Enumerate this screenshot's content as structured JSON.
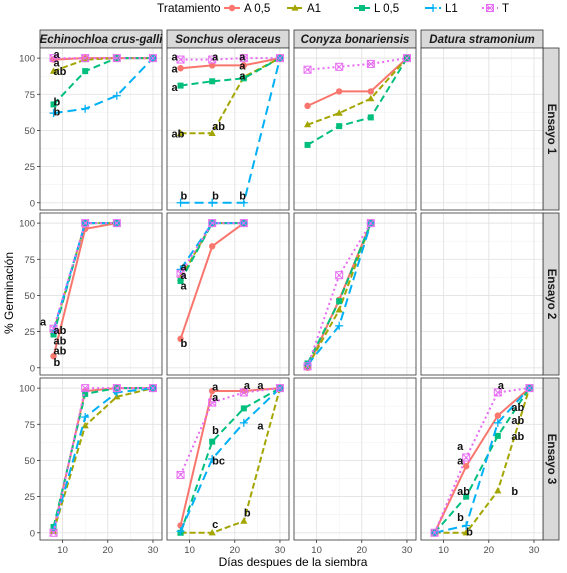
{
  "colors": {
    "A 0,5": "#f8766d",
    "A1": "#a3a500",
    "L 0,5": "#00bf7d",
    "L1": "#00b0f6",
    "T": "#e76bf3"
  },
  "legend": {
    "title": "Tratamiento",
    "items": [
      "A 0,5",
      "A1",
      "L 0,5",
      "L1",
      "T"
    ]
  },
  "chart_data": {
    "type": "line",
    "xlabel": "Días despues de la siembra",
    "ylabel": "% Germinación",
    "xlim": [
      5,
      32
    ],
    "ylim": [
      -5,
      107
    ],
    "xticks": [
      10,
      20,
      30
    ],
    "yticks": [
      0,
      25,
      50,
      75,
      100
    ],
    "columns": [
      "Echinochloa crus-galli",
      "Sonchus oleraceus",
      "Conyza bonariensis",
      "Datura stramonium"
    ],
    "rows": [
      "Ensayo 1",
      "Ensayo 2",
      "Ensayo 3"
    ],
    "grid": true,
    "legend_position": "top",
    "panels": [
      {
        "row": 0,
        "col": 0,
        "series": [
          {
            "name": "A 0,5",
            "x": [
              8,
              15,
              22,
              30
            ],
            "y": [
              99,
              100,
              100,
              100
            ]
          },
          {
            "name": "A1",
            "x": [
              8,
              15,
              22,
              30
            ],
            "y": [
              91,
              99,
              100,
              100
            ]
          },
          {
            "name": "L 0,5",
            "x": [
              8,
              15,
              22,
              30
            ],
            "y": [
              68,
              91,
              100,
              100
            ]
          },
          {
            "name": "L1",
            "x": [
              8,
              15,
              22,
              30
            ],
            "y": [
              62,
              65,
              74,
              100
            ]
          },
          {
            "name": "T",
            "x": [
              8,
              15,
              22,
              30
            ],
            "y": [
              100,
              100,
              100,
              100
            ]
          }
        ],
        "labels": [
          {
            "x": 8,
            "y": 103,
            "t": "a"
          },
          {
            "x": 8,
            "y": 97,
            "t": "a"
          },
          {
            "x": 8,
            "y": 91,
            "t": "ab"
          },
          {
            "x": 8,
            "y": 70,
            "t": "b"
          },
          {
            "x": 8,
            "y": 63,
            "t": "b"
          }
        ]
      },
      {
        "row": 0,
        "col": 1,
        "series": [
          {
            "name": "A 0,5",
            "x": [
              8,
              15,
              22,
              30
            ],
            "y": [
              93,
              95,
              95,
              100
            ]
          },
          {
            "name": "A1",
            "x": [
              8,
              15,
              22,
              30
            ],
            "y": [
              48,
              48,
              87,
              100
            ]
          },
          {
            "name": "L 0,5",
            "x": [
              8,
              15,
              22,
              30
            ],
            "y": [
              81,
              84,
              86,
              100
            ]
          },
          {
            "name": "L1",
            "x": [
              8,
              15,
              22,
              30
            ],
            "y": [
              0,
              0,
              0,
              100
            ]
          },
          {
            "name": "T",
            "x": [
              8,
              15,
              22,
              30
            ],
            "y": [
              99,
              99,
              100,
              100
            ]
          }
        ],
        "labels": [
          {
            "x": 6,
            "y": 101,
            "t": "a"
          },
          {
            "x": 6,
            "y": 93,
            "t": "a"
          },
          {
            "x": 6,
            "y": 80,
            "t": "a"
          },
          {
            "x": 6,
            "y": 48,
            "t": "ab"
          },
          {
            "x": 15,
            "y": 101,
            "t": "a"
          },
          {
            "x": 15,
            "y": 53,
            "t": "ab"
          },
          {
            "x": 21,
            "y": 101,
            "t": "a"
          },
          {
            "x": 21,
            "y": 95,
            "t": "a"
          },
          {
            "x": 21,
            "y": 88,
            "t": "a"
          },
          {
            "x": 8,
            "y": 5,
            "t": "b"
          },
          {
            "x": 15,
            "y": 5,
            "t": "b"
          },
          {
            "x": 21,
            "y": 5,
            "t": "b"
          }
        ]
      },
      {
        "row": 0,
        "col": 2,
        "series": [
          {
            "name": "A 0,5",
            "x": [
              8,
              15,
              22,
              30
            ],
            "y": [
              67,
              77,
              77,
              100
            ]
          },
          {
            "name": "A1",
            "x": [
              8,
              15,
              22,
              30
            ],
            "y": [
              54,
              62,
              72,
              100
            ]
          },
          {
            "name": "L 0,5",
            "x": [
              8,
              15,
              22,
              30
            ],
            "y": [
              40,
              53,
              59,
              100
            ]
          },
          {
            "name": "T",
            "x": [
              8,
              15,
              22,
              30
            ],
            "y": [
              92,
              94,
              96,
              100
            ]
          }
        ],
        "labels": []
      },
      {
        "row": 0,
        "col": 3,
        "series": [],
        "labels": []
      },
      {
        "row": 1,
        "col": 0,
        "series": [
          {
            "name": "A 0,5",
            "x": [
              8,
              15,
              22
            ],
            "y": [
              8,
              96,
              100
            ]
          },
          {
            "name": "A1",
            "x": [
              8,
              15,
              22
            ],
            "y": [
              25,
              100,
              100
            ]
          },
          {
            "name": "L 0,5",
            "x": [
              8,
              15,
              22
            ],
            "y": [
              23,
              100,
              100
            ]
          },
          {
            "name": "L1",
            "x": [
              8,
              15,
              22
            ],
            "y": [
              26,
              100,
              100
            ]
          },
          {
            "name": "T",
            "x": [
              8,
              15,
              22
            ],
            "y": [
              27,
              100,
              100
            ]
          }
        ],
        "labels": [
          {
            "x": 5,
            "y": 32,
            "t": "a"
          },
          {
            "x": 8,
            "y": 26,
            "t": "ab"
          },
          {
            "x": 8,
            "y": 19,
            "t": "ab"
          },
          {
            "x": 8,
            "y": 12,
            "t": "ab"
          },
          {
            "x": 8,
            "y": 4,
            "t": "b"
          }
        ]
      },
      {
        "row": 1,
        "col": 1,
        "series": [
          {
            "name": "A 0,5",
            "x": [
              8,
              15,
              22
            ],
            "y": [
              20,
              84,
              100
            ]
          },
          {
            "name": "A1",
            "x": [
              8,
              15,
              22
            ],
            "y": [
              62,
              100,
              100
            ]
          },
          {
            "name": "L 0,5",
            "x": [
              8,
              15,
              22
            ],
            "y": [
              60,
              100,
              100
            ]
          },
          {
            "name": "L1",
            "x": [
              8,
              15,
              22
            ],
            "y": [
              68,
              100,
              100
            ]
          },
          {
            "name": "T",
            "x": [
              8,
              15,
              22
            ],
            "y": [
              65,
              100,
              100
            ]
          }
        ],
        "labels": [
          {
            "x": 8,
            "y": 70,
            "t": "a"
          },
          {
            "x": 8,
            "y": 64,
            "t": "a"
          },
          {
            "x": 8,
            "y": 57,
            "t": "a"
          },
          {
            "x": 8,
            "y": 17,
            "t": "b"
          }
        ]
      },
      {
        "row": 1,
        "col": 2,
        "series": [
          {
            "name": "A 0,5",
            "x": [
              8,
              15,
              22
            ],
            "y": [
              0,
              47,
              100
            ]
          },
          {
            "name": "A1",
            "x": [
              8,
              15,
              22
            ],
            "y": [
              1,
              40,
              100
            ]
          },
          {
            "name": "L 0,5",
            "x": [
              8,
              15,
              22
            ],
            "y": [
              3,
              46,
              100
            ]
          },
          {
            "name": "L1",
            "x": [
              8,
              15,
              22
            ],
            "y": [
              2,
              29,
              100
            ]
          },
          {
            "name": "T",
            "x": [
              8,
              15,
              22
            ],
            "y": [
              1,
              64,
              100
            ]
          }
        ],
        "labels": []
      },
      {
        "row": 1,
        "col": 3,
        "series": [],
        "labels": []
      },
      {
        "row": 2,
        "col": 0,
        "series": [
          {
            "name": "A 0,5",
            "x": [
              8,
              15,
              22,
              30
            ],
            "y": [
              2,
              98,
              100,
              100
            ]
          },
          {
            "name": "A1",
            "x": [
              8,
              15,
              22,
              30
            ],
            "y": [
              1,
              74,
              94,
              100
            ]
          },
          {
            "name": "L 0,5",
            "x": [
              8,
              15,
              22,
              30
            ],
            "y": [
              4,
              96,
              100,
              100
            ]
          },
          {
            "name": "L1",
            "x": [
              8,
              15,
              22,
              30
            ],
            "y": [
              2,
              80,
              97,
              100
            ]
          },
          {
            "name": "T",
            "x": [
              8,
              15,
              22,
              30
            ],
            "y": [
              0,
              100,
              100,
              100
            ]
          }
        ],
        "labels": []
      },
      {
        "row": 2,
        "col": 1,
        "series": [
          {
            "name": "A 0,5",
            "x": [
              8,
              15,
              22,
              30
            ],
            "y": [
              5,
              98,
              98,
              100
            ]
          },
          {
            "name": "A1",
            "x": [
              8,
              15,
              22,
              30
            ],
            "y": [
              0,
              0,
              8,
              100
            ]
          },
          {
            "name": "L 0,5",
            "x": [
              8,
              15,
              22,
              30
            ],
            "y": [
              0,
              63,
              86,
              100
            ]
          },
          {
            "name": "L1",
            "x": [
              8,
              15,
              22,
              30
            ],
            "y": [
              1,
              51,
              76,
              100
            ]
          },
          {
            "name": "T",
            "x": [
              8,
              15,
              22,
              30
            ],
            "y": [
              40,
              90,
              97,
              100
            ]
          }
        ],
        "labels": [
          {
            "x": 15,
            "y": 101,
            "t": "a"
          },
          {
            "x": 15,
            "y": 94,
            "t": "a"
          },
          {
            "x": 15,
            "y": 71,
            "t": "b"
          },
          {
            "x": 15,
            "y": 50,
            "t": "bc"
          },
          {
            "x": 15,
            "y": 6,
            "t": "c"
          },
          {
            "x": 22,
            "y": 102,
            "t": "a"
          },
          {
            "x": 25,
            "y": 102,
            "t": "a"
          },
          {
            "x": 25,
            "y": 74,
            "t": "a"
          },
          {
            "x": 22,
            "y": 14,
            "t": "b"
          }
        ]
      },
      {
        "row": 2,
        "col": 2,
        "series": [],
        "labels": []
      },
      {
        "row": 2,
        "col": 3,
        "series": [
          {
            "name": "A 0,5",
            "x": [
              8,
              15,
              22,
              29
            ],
            "y": [
              0,
              46,
              81,
              100
            ]
          },
          {
            "name": "A1",
            "x": [
              8,
              15,
              22,
              29
            ],
            "y": [
              0,
              0,
              29,
              100
            ]
          },
          {
            "name": "L 0,5",
            "x": [
              8,
              15,
              22,
              29
            ],
            "y": [
              0,
              25,
              67,
              100
            ]
          },
          {
            "name": "L1",
            "x": [
              8,
              15,
              22,
              29
            ],
            "y": [
              0,
              5,
              76,
              100
            ]
          },
          {
            "name": "T",
            "x": [
              8,
              15,
              22,
              29
            ],
            "y": [
              0,
              52,
              97,
              100
            ]
          }
        ],
        "labels": [
          {
            "x": 13,
            "y": 60,
            "t": "a"
          },
          {
            "x": 13,
            "y": 50,
            "t": "a"
          },
          {
            "x": 13,
            "y": 29,
            "t": "ab"
          },
          {
            "x": 13,
            "y": 11,
            "t": "b"
          },
          {
            "x": 15,
            "y": 1,
            "t": "b"
          },
          {
            "x": 22,
            "y": 102,
            "t": "a"
          },
          {
            "x": 25,
            "y": 87,
            "t": "ab"
          },
          {
            "x": 25,
            "y": 78,
            "t": "ab"
          },
          {
            "x": 25,
            "y": 67,
            "t": "ab"
          },
          {
            "x": 25,
            "y": 29,
            "t": "b"
          }
        ]
      }
    ]
  }
}
